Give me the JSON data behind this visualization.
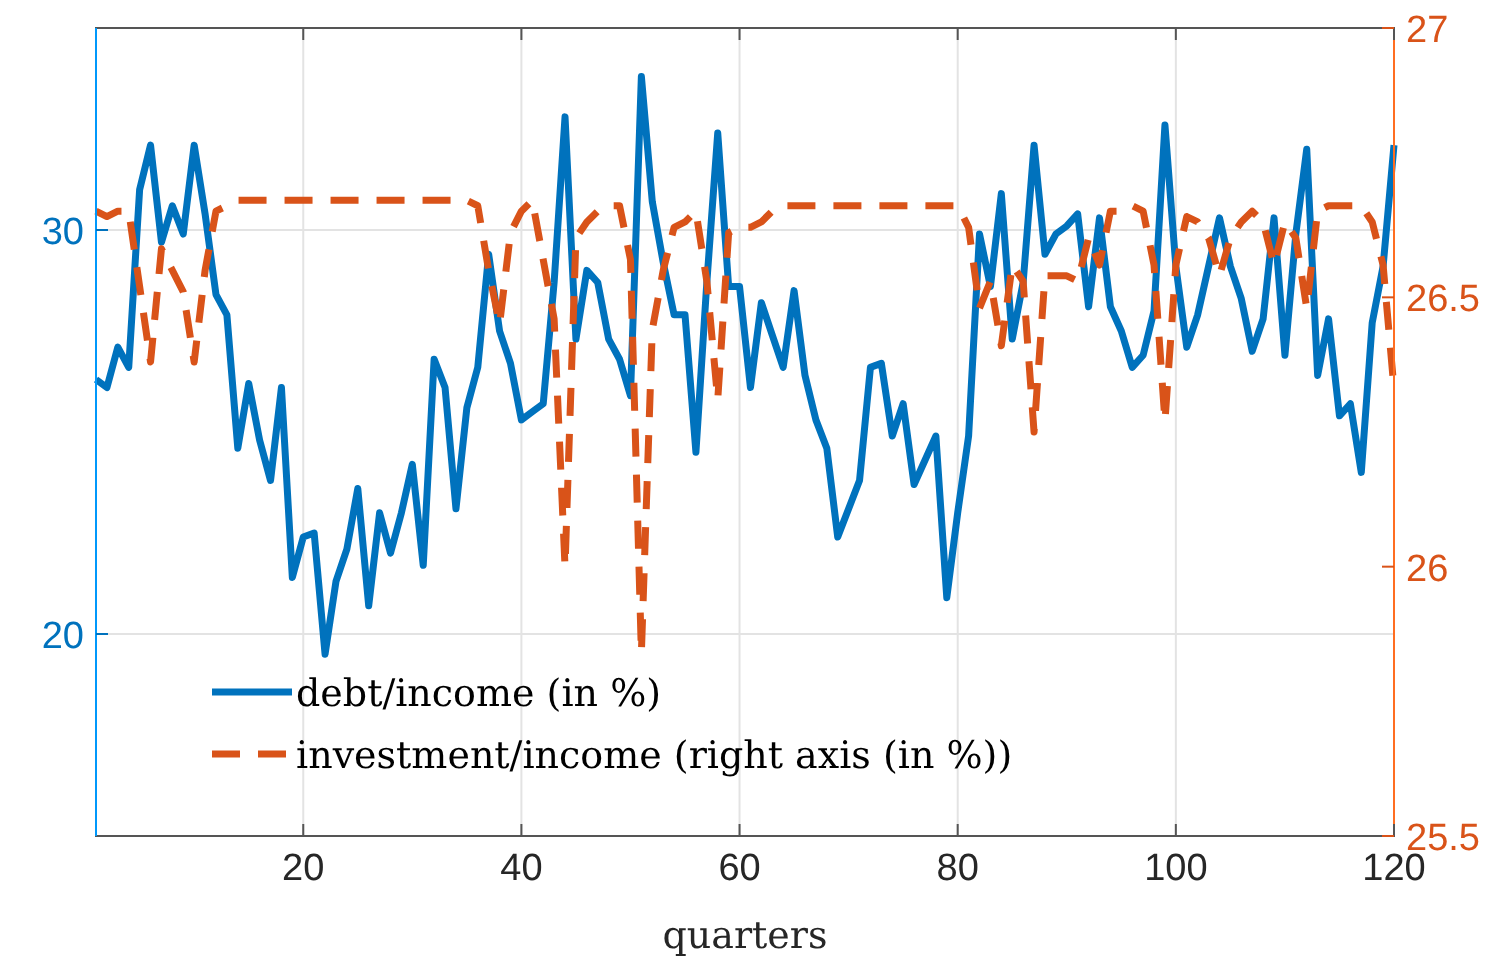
{
  "chart_data": {
    "type": "line",
    "xlabel": "quarters",
    "xlim": [
      1,
      120
    ],
    "xticks": [
      20,
      40,
      60,
      80,
      100,
      120
    ],
    "ylim": [
      15,
      35
    ],
    "yticks": [
      20,
      30
    ],
    "y2lim": [
      25.5,
      27
    ],
    "y2ticks": [
      25.5,
      26,
      26.5,
      27
    ],
    "grid": true,
    "legend": "bottom left",
    "x": [
      1,
      2,
      3,
      4,
      5,
      6,
      7,
      8,
      9,
      10,
      11,
      12,
      13,
      14,
      15,
      16,
      17,
      18,
      19,
      20,
      21,
      22,
      23,
      24,
      25,
      26,
      27,
      28,
      29,
      30,
      31,
      32,
      33,
      34,
      35,
      36,
      37,
      38,
      39,
      40,
      41,
      42,
      43,
      44,
      45,
      46,
      47,
      48,
      49,
      50,
      51,
      52,
      53,
      54,
      55,
      56,
      57,
      58,
      59,
      60,
      61,
      62,
      63,
      64,
      65,
      66,
      67,
      68,
      69,
      70,
      71,
      72,
      73,
      74,
      75,
      76,
      77,
      78,
      79,
      80,
      81,
      82,
      83,
      84,
      85,
      86,
      87,
      88,
      89,
      90,
      91,
      92,
      93,
      94,
      95,
      96,
      97,
      98,
      99,
      100,
      101,
      102,
      103,
      104,
      105,
      106,
      107,
      108,
      109,
      110,
      111,
      112,
      113,
      114,
      115,
      116,
      117,
      118,
      119,
      120
    ],
    "series": [
      {
        "name": "debt/income (in %)",
        "color": "#0072bd",
        "line_style": "solid",
        "values": [
          26.3,
          26.1,
          27.1,
          26.6,
          31.0,
          32.1,
          29.7,
          30.6,
          29.9,
          32.1,
          30.4,
          28.4,
          27.9,
          24.6,
          26.2,
          24.8,
          23.8,
          26.1,
          21.4,
          22.4,
          22.5,
          19.5,
          21.3,
          22.1,
          23.6,
          20.7,
          23.0,
          22.0,
          23.0,
          24.2,
          21.7,
          26.8,
          26.1,
          23.1,
          25.6,
          26.6,
          29.4,
          27.5,
          26.7,
          25.3,
          25.5,
          25.7,
          28.7,
          32.8,
          27.3,
          29.0,
          28.7,
          27.3,
          26.8,
          25.9,
          33.8,
          30.7,
          29.2,
          27.9,
          27.9,
          24.5,
          28.7,
          32.4,
          28.6,
          28.6,
          26.1,
          28.2,
          27.4,
          26.6,
          28.5,
          26.4,
          25.3,
          24.6,
          22.4,
          23.1,
          23.8,
          26.6,
          26.7,
          24.9,
          25.7,
          23.7,
          24.3,
          24.9,
          20.9,
          23.0,
          24.9,
          29.9,
          28.6,
          30.9,
          27.3,
          28.7,
          32.1,
          29.4,
          29.9,
          30.1,
          30.4,
          28.1,
          30.3,
          28.1,
          27.5,
          26.6,
          26.9,
          28.0,
          32.6,
          29.1,
          27.1,
          27.9,
          29.1,
          30.3,
          29.1,
          28.3,
          27.0,
          27.8,
          30.3,
          26.9,
          29.9,
          32.0,
          26.4,
          27.8,
          25.4,
          25.7,
          24.0,
          27.7,
          29.1,
          32.1
        ]
      },
      {
        "name": "investment/income (right axis (in %))",
        "color": "#d95319",
        "line_style": "dashed",
        "axis": "y2",
        "values": [
          26.66,
          26.65,
          26.66,
          26.66,
          26.52,
          26.38,
          26.59,
          26.55,
          26.51,
          26.38,
          26.55,
          26.66,
          26.67,
          26.68,
          26.68,
          26.68,
          26.68,
          26.68,
          26.68,
          26.68,
          26.68,
          26.68,
          26.68,
          26.68,
          26.68,
          26.68,
          26.68,
          26.68,
          26.68,
          26.68,
          26.68,
          26.68,
          26.68,
          26.68,
          26.68,
          26.67,
          26.55,
          26.45,
          26.62,
          26.66,
          26.68,
          26.57,
          26.46,
          26.0,
          26.61,
          26.64,
          26.66,
          26.67,
          26.67,
          26.57,
          25.84,
          26.44,
          26.55,
          26.63,
          26.64,
          26.66,
          26.53,
          26.31,
          26.62,
          26.63,
          26.63,
          26.64,
          26.66,
          26.67,
          26.67,
          26.67,
          26.67,
          26.67,
          26.67,
          26.67,
          26.67,
          26.67,
          26.67,
          26.67,
          26.67,
          26.67,
          26.67,
          26.67,
          26.67,
          26.67,
          26.63,
          26.48,
          26.53,
          26.41,
          26.56,
          26.53,
          26.25,
          26.54,
          26.54,
          26.54,
          26.53,
          26.61,
          26.56,
          26.66,
          26.66,
          26.67,
          26.66,
          26.56,
          26.27,
          26.56,
          26.65,
          26.64,
          26.61,
          26.54,
          26.61,
          26.64,
          26.66,
          26.64,
          26.56,
          26.64,
          26.61,
          26.48,
          26.66,
          26.67,
          26.67,
          26.67,
          26.67,
          26.64,
          26.56,
          26.33
        ]
      }
    ]
  }
}
